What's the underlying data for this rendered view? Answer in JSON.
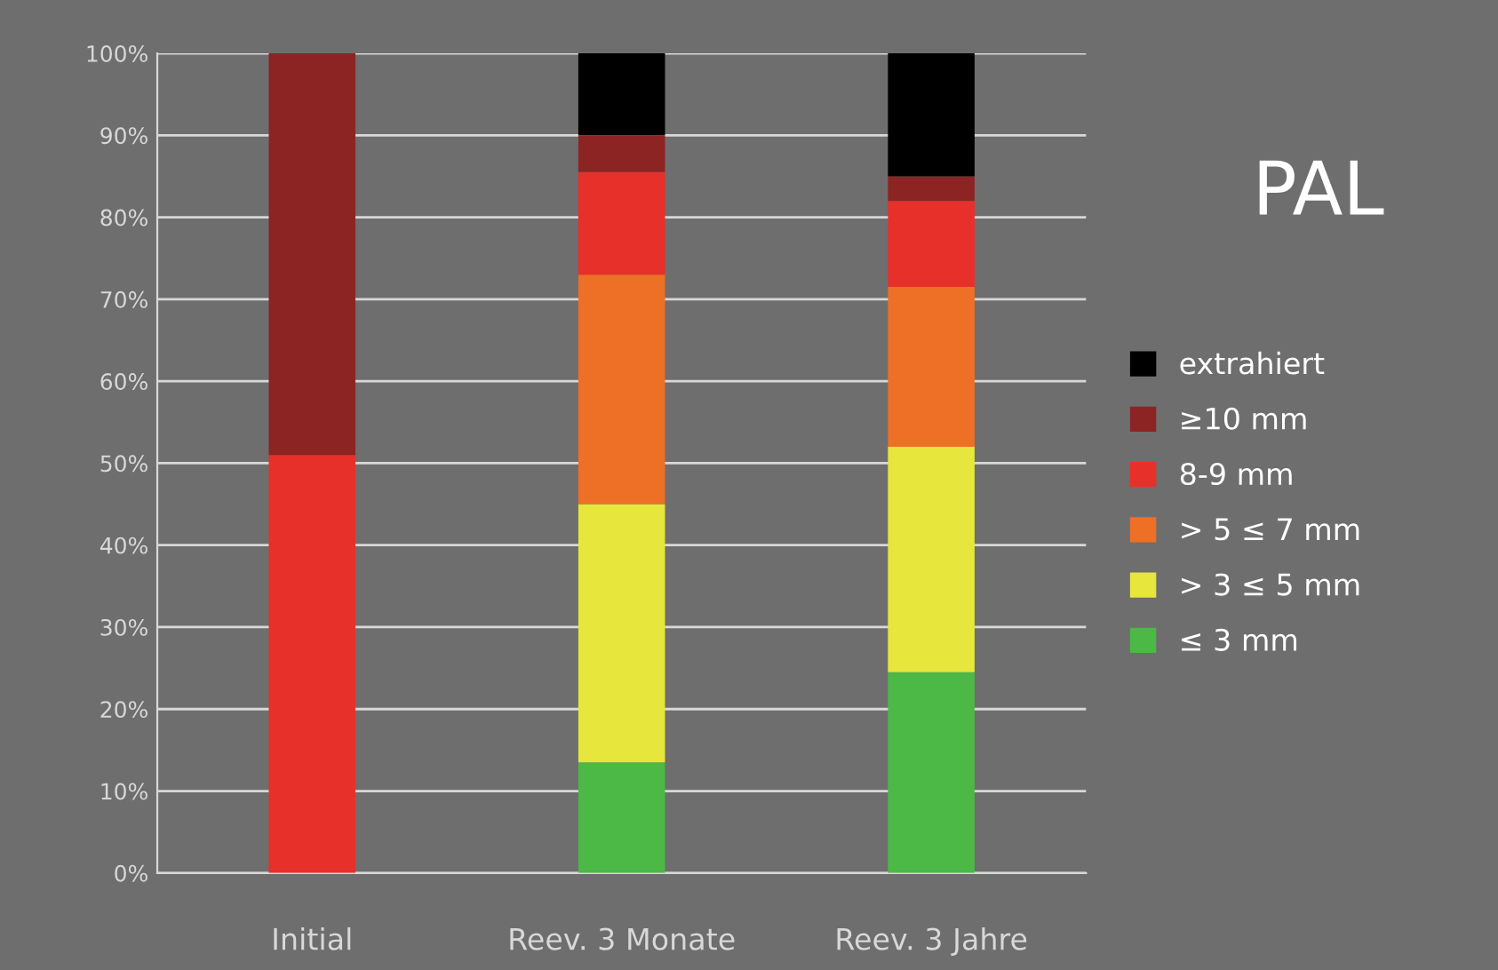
{
  "chart_data": {
    "type": "bar",
    "title": "PAL",
    "stacked": true,
    "categories": [
      "Initial",
      "Reev. 3 Monate",
      "Reev. 3 Jahre"
    ],
    "series": [
      {
        "name": "≤ 3 mm",
        "color": "#4cb846",
        "values": [
          0,
          13.5,
          24.5
        ]
      },
      {
        "name": "> 3 ≤ 5 mm",
        "color": "#e6e63c",
        "values": [
          0,
          31.5,
          27.5
        ]
      },
      {
        "name": "> 5 ≤ 7 mm",
        "color": "#ee7026",
        "values": [
          0,
          28,
          19.5
        ]
      },
      {
        "name": "8-9 mm",
        "color": "#e8302a",
        "values": [
          51,
          12.5,
          10.5
        ]
      },
      {
        "name": "≥10 mm",
        "color": "#8c2424",
        "values": [
          49,
          4.5,
          3
        ]
      },
      {
        "name": "extrahiert",
        "color": "#000000",
        "values": [
          0,
          10,
          15
        ]
      }
    ],
    "ylim": [
      0,
      100
    ],
    "yticks": [
      {
        "value": 0,
        "label": "0%"
      },
      {
        "value": 10,
        "label": "10%"
      },
      {
        "value": 20,
        "label": "20%"
      },
      {
        "value": 30,
        "label": "30%"
      },
      {
        "value": 40,
        "label": "40%"
      },
      {
        "value": 50,
        "label": "50%"
      },
      {
        "value": 60,
        "label": "60%"
      },
      {
        "value": 70,
        "label": "70%"
      },
      {
        "value": 80,
        "label": "80%"
      },
      {
        "value": 90,
        "label": "90%"
      },
      {
        "value": 100,
        "label": "100%"
      }
    ],
    "grid": "y",
    "legend": "right"
  }
}
